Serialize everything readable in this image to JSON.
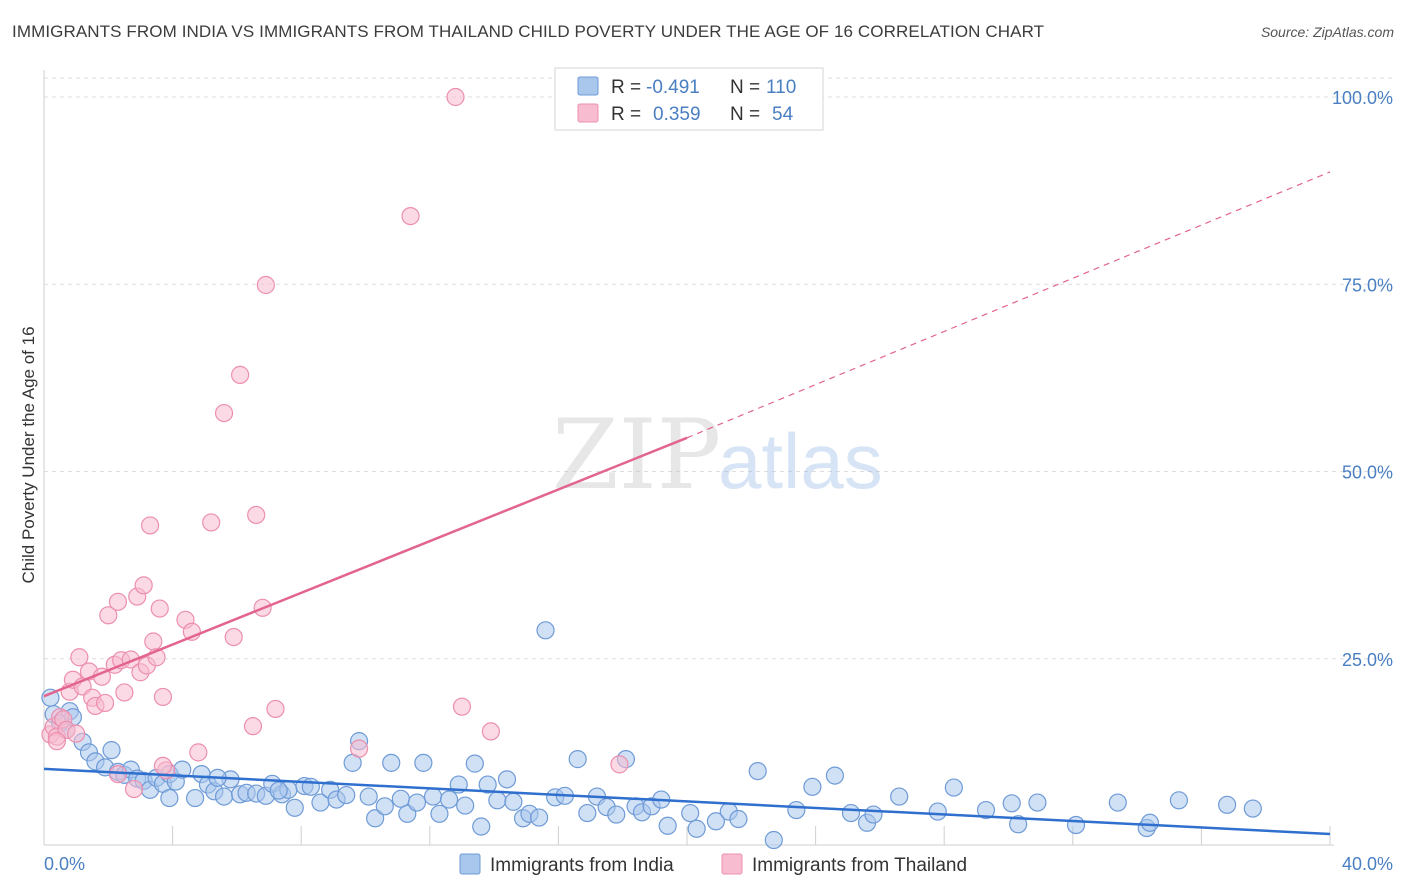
{
  "header": {
    "title": "IMMIGRANTS FROM INDIA VS IMMIGRANTS FROM THAILAND CHILD POVERTY UNDER THE AGE OF 16 CORRELATION CHART",
    "source": "Source: ZipAtlas.com"
  },
  "watermark": {
    "zip": "ZIP",
    "atlas": "atlas"
  },
  "colors": {
    "india_fill": "#a9c6ec",
    "india_stroke": "#6f9bd6",
    "india_line": "#2f6fce",
    "thailand_fill": "#f7bcd0",
    "thailand_stroke": "#ec8fae",
    "thailand_line": "#e2648f",
    "tick_text": "#4a7fc1",
    "grid": "#dddddd"
  },
  "legend": {
    "rows": [
      {
        "r_label": "R =",
        "r_value": "-0.491",
        "n_label": "N =",
        "n_value": "110"
      },
      {
        "r_label": "R =",
        "r_value": "0.359",
        "n_label": "N =",
        "n_value": "54"
      }
    ]
  },
  "chart_data": {
    "type": "scatter",
    "title": "IMMIGRANTS FROM INDIA VS IMMIGRANTS FROM THAILAND CHILD POVERTY UNDER THE AGE OF 16 CORRELATION CHART",
    "xlabel": "",
    "ylabel": "Child Poverty Under the Age of 16",
    "xlim": [
      0,
      40
    ],
    "ylim": [
      0,
      100
    ],
    "x_tick_labels": [
      "0.0%",
      "40.0%"
    ],
    "y_ticks": [
      25,
      50,
      75,
      100
    ],
    "y_tick_labels": [
      "25.0%",
      "50.0%",
      "75.0%",
      "100.0%"
    ],
    "grid": true,
    "series": [
      {
        "name": "Immigrants from India",
        "r": -0.491,
        "n": 110,
        "trend": {
          "x0": 0,
          "y0": 10.3,
          "x1": 40,
          "y1": 1.6
        },
        "points": [
          [
            0.2,
            19.8
          ],
          [
            0.3,
            17.6
          ],
          [
            0.5,
            16.4
          ],
          [
            0.7,
            15.5
          ],
          [
            0.8,
            18.0
          ],
          [
            1.2,
            13.9
          ],
          [
            1.4,
            12.5
          ],
          [
            1.6,
            11.3
          ],
          [
            1.9,
            10.5
          ],
          [
            2.1,
            12.8
          ],
          [
            2.3,
            9.9
          ],
          [
            2.5,
            9.5
          ],
          [
            2.7,
            10.2
          ],
          [
            2.9,
            9.0
          ],
          [
            3.1,
            8.7
          ],
          [
            3.3,
            7.5
          ],
          [
            3.5,
            9.1
          ],
          [
            3.7,
            8.3
          ],
          [
            3.9,
            9.6
          ],
          [
            4.1,
            8.6
          ],
          [
            4.3,
            10.2
          ],
          [
            4.7,
            6.4
          ],
          [
            4.9,
            9.6
          ],
          [
            5.1,
            8.2
          ],
          [
            5.3,
            7.3
          ],
          [
            5.6,
            6.6
          ],
          [
            5.8,
            8.9
          ],
          [
            6.1,
            6.9
          ],
          [
            6.3,
            7.1
          ],
          [
            6.6,
            7.0
          ],
          [
            6.9,
            6.7
          ],
          [
            7.1,
            8.3
          ],
          [
            7.4,
            6.9
          ],
          [
            7.6,
            7.5
          ],
          [
            7.8,
            5.1
          ],
          [
            8.1,
            8.0
          ],
          [
            8.3,
            7.9
          ],
          [
            8.6,
            5.8
          ],
          [
            8.9,
            7.5
          ],
          [
            9.1,
            6.2
          ],
          [
            9.4,
            6.8
          ],
          [
            9.6,
            11.1
          ],
          [
            9.8,
            14.0
          ],
          [
            10.1,
            6.6
          ],
          [
            10.3,
            3.7
          ],
          [
            10.6,
            5.3
          ],
          [
            10.8,
            11.1
          ],
          [
            11.1,
            6.3
          ],
          [
            11.3,
            4.3
          ],
          [
            11.6,
            5.8
          ],
          [
            11.8,
            11.1
          ],
          [
            12.1,
            6.6
          ],
          [
            12.3,
            4.3
          ],
          [
            12.6,
            6.2
          ],
          [
            12.9,
            8.2
          ],
          [
            13.1,
            5.4
          ],
          [
            13.4,
            11.0
          ],
          [
            13.6,
            2.6
          ],
          [
            13.8,
            8.2
          ],
          [
            14.1,
            6.1
          ],
          [
            14.4,
            8.9
          ],
          [
            14.6,
            5.9
          ],
          [
            14.9,
            3.7
          ],
          [
            15.1,
            4.3
          ],
          [
            15.4,
            3.8
          ],
          [
            15.6,
            28.8
          ],
          [
            15.9,
            6.5
          ],
          [
            16.2,
            6.7
          ],
          [
            16.6,
            11.6
          ],
          [
            16.9,
            4.4
          ],
          [
            17.2,
            6.6
          ],
          [
            17.5,
            5.2
          ],
          [
            17.8,
            4.2
          ],
          [
            18.1,
            11.6
          ],
          [
            18.4,
            5.3
          ],
          [
            18.6,
            4.5
          ],
          [
            18.9,
            5.3
          ],
          [
            19.2,
            6.2
          ],
          [
            19.4,
            2.7
          ],
          [
            20.1,
            4.4
          ],
          [
            20.3,
            2.3
          ],
          [
            20.9,
            3.3
          ],
          [
            21.3,
            4.6
          ],
          [
            21.6,
            3.6
          ],
          [
            22.2,
            10.0
          ],
          [
            23.4,
            4.8
          ],
          [
            23.9,
            7.9
          ],
          [
            24.6,
            9.4
          ],
          [
            25.1,
            4.4
          ],
          [
            25.6,
            3.1
          ],
          [
            25.8,
            4.2
          ],
          [
            26.6,
            6.6
          ],
          [
            27.8,
            4.6
          ],
          [
            28.3,
            7.8
          ],
          [
            29.3,
            4.8
          ],
          [
            30.1,
            5.7
          ],
          [
            30.3,
            2.9
          ],
          [
            30.9,
            5.8
          ],
          [
            32.1,
            2.8
          ],
          [
            33.4,
            5.8
          ],
          [
            34.3,
            2.4
          ],
          [
            34.4,
            3.1
          ],
          [
            35.3,
            6.1
          ],
          [
            36.8,
            5.5
          ],
          [
            37.6,
            5.0
          ],
          [
            22.7,
            0.8
          ],
          [
            5.4,
            9.1
          ],
          [
            3.9,
            6.4
          ],
          [
            7.3,
            7.4
          ],
          [
            0.9,
            17.2
          ]
        ]
      },
      {
        "name": "Immigrants from Thailand",
        "r": 0.359,
        "n": 54,
        "trend": {
          "x0": 0,
          "y0": 20.0,
          "x1": 20,
          "y1": 54.5
        },
        "trend_dashed": {
          "x0": 20,
          "y0": 54.5,
          "x1": 40,
          "y1": 90.0
        },
        "points": [
          [
            0.2,
            14.9
          ],
          [
            0.3,
            15.9
          ],
          [
            0.4,
            14.6
          ],
          [
            0.5,
            17.2
          ],
          [
            0.6,
            16.9
          ],
          [
            0.7,
            15.5
          ],
          [
            0.8,
            20.6
          ],
          [
            0.9,
            22.2
          ],
          [
            1.1,
            25.2
          ],
          [
            1.2,
            21.3
          ],
          [
            1.4,
            23.3
          ],
          [
            1.5,
            19.8
          ],
          [
            1.6,
            18.7
          ],
          [
            1.8,
            22.6
          ],
          [
            1.9,
            19.1
          ],
          [
            2.0,
            30.8
          ],
          [
            2.2,
            24.2
          ],
          [
            2.3,
            32.6
          ],
          [
            2.4,
            24.8
          ],
          [
            2.5,
            20.5
          ],
          [
            2.7,
            24.9
          ],
          [
            2.8,
            7.6
          ],
          [
            2.9,
            33.3
          ],
          [
            3.0,
            23.2
          ],
          [
            3.1,
            34.8
          ],
          [
            3.2,
            24.1
          ],
          [
            3.3,
            42.8
          ],
          [
            3.4,
            27.3
          ],
          [
            3.5,
            25.2
          ],
          [
            3.6,
            31.7
          ],
          [
            3.7,
            19.9
          ],
          [
            3.8,
            10.1
          ],
          [
            4.4,
            30.2
          ],
          [
            4.6,
            28.6
          ],
          [
            4.8,
            12.5
          ],
          [
            5.2,
            43.2
          ],
          [
            5.6,
            57.8
          ],
          [
            5.9,
            27.9
          ],
          [
            6.1,
            62.9
          ],
          [
            6.5,
            16.0
          ],
          [
            6.6,
            44.2
          ],
          [
            6.8,
            31.8
          ],
          [
            6.9,
            74.9
          ],
          [
            7.2,
            18.3
          ],
          [
            9.8,
            13.0
          ],
          [
            11.4,
            84.1
          ],
          [
            12.8,
            100.0
          ],
          [
            13.0,
            18.6
          ],
          [
            13.9,
            15.3
          ],
          [
            17.9,
            10.9
          ],
          [
            0.4,
            14.0
          ],
          [
            1.0,
            15.0
          ],
          [
            2.3,
            9.6
          ],
          [
            3.7,
            10.7
          ]
        ]
      }
    ]
  },
  "bottom_legend": {
    "items": [
      {
        "label": "Immigrants from India"
      },
      {
        "label": "Immigrants from Thailand"
      }
    ]
  }
}
